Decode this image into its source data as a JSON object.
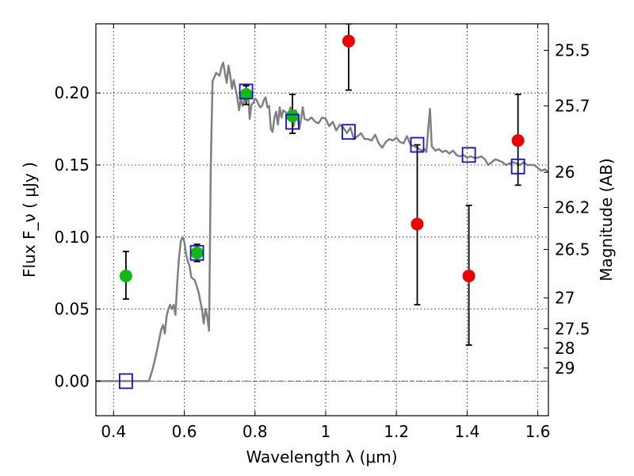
{
  "chart_data": {
    "type": "scatter",
    "xlabel": "Wavelength  λ (μm)",
    "ylabel": "Flux  F_ν  ( μJy )",
    "ylabel_right": "Magnitude (AB)",
    "xlim": [
      0.35,
      1.63
    ],
    "ylim": [
      -0.024,
      0.248
    ],
    "x_ticks": [
      0.4,
      0.6,
      0.8,
      1.0,
      1.2,
      1.4,
      1.6
    ],
    "x_tick_labels": [
      "0.4",
      "0.6",
      "0.8",
      "1",
      "1.2",
      "1.4",
      "1.6"
    ],
    "y_ticks": [
      0.0,
      0.05,
      0.1,
      0.15,
      0.2
    ],
    "y_tick_labels": [
      "0.00",
      "0.05",
      "0.10",
      "0.15",
      "0.20"
    ],
    "right_ticks": [
      {
        "label": "25.5",
        "flux": 0.2296
      },
      {
        "label": "25.7",
        "flux": 0.191
      },
      {
        "label": "26",
        "flux": 0.1449
      },
      {
        "label": "26.2",
        "flux": 0.1205
      },
      {
        "label": "26.5",
        "flux": 0.0914
      },
      {
        "label": "27",
        "flux": 0.0577
      },
      {
        "label": "27.5",
        "flux": 0.0364
      },
      {
        "label": "28",
        "flux": 0.0229
      },
      {
        "label": "29",
        "flux": 0.0091
      }
    ],
    "grid": true,
    "colors": {
      "model": "#808080",
      "detected": "#11bb11",
      "upper": "#ee0000",
      "model_points": "#1010d0",
      "errbar": "#000000"
    },
    "series": [
      {
        "kind": "model_spectrum",
        "x": [
          0.35,
          0.5,
          0.51,
          0.52,
          0.53,
          0.535,
          0.54,
          0.545,
          0.55,
          0.555,
          0.56,
          0.565,
          0.57,
          0.575,
          0.58,
          0.585,
          0.59,
          0.595,
          0.6,
          0.605,
          0.61,
          0.615,
          0.62,
          0.63,
          0.64,
          0.65,
          0.655,
          0.66,
          0.665,
          0.67,
          0.675,
          0.68,
          0.69,
          0.7,
          0.705,
          0.71,
          0.715,
          0.72,
          0.725,
          0.73,
          0.735,
          0.74,
          0.745,
          0.75,
          0.755,
          0.76,
          0.765,
          0.77,
          0.775,
          0.78,
          0.785,
          0.79,
          0.795,
          0.8,
          0.805,
          0.81,
          0.815,
          0.82,
          0.825,
          0.83,
          0.835,
          0.84,
          0.845,
          0.85,
          0.855,
          0.86,
          0.865,
          0.87,
          0.875,
          0.88,
          0.885,
          0.89,
          0.895,
          0.9,
          0.905,
          0.91,
          0.915,
          0.92,
          0.925,
          0.93,
          0.935,
          0.94,
          0.95,
          0.96,
          0.97,
          0.98,
          0.99,
          1.0,
          1.01,
          1.02,
          1.03,
          1.04,
          1.05,
          1.06,
          1.07,
          1.08,
          1.09,
          1.1,
          1.11,
          1.12,
          1.13,
          1.14,
          1.15,
          1.16,
          1.17,
          1.18,
          1.19,
          1.2,
          1.21,
          1.22,
          1.23,
          1.24,
          1.25,
          1.26,
          1.27,
          1.28,
          1.285,
          1.29,
          1.295,
          1.3,
          1.31,
          1.32,
          1.33,
          1.34,
          1.35,
          1.36,
          1.37,
          1.38,
          1.39,
          1.4,
          1.41,
          1.42,
          1.43,
          1.44,
          1.45,
          1.46,
          1.47,
          1.48,
          1.49,
          1.5,
          1.51,
          1.52,
          1.53,
          1.54,
          1.55,
          1.56,
          1.57,
          1.58,
          1.59,
          1.6,
          1.61,
          1.62,
          1.63
        ],
        "y": [
          0.0,
          0.0,
          0.008,
          0.018,
          0.03,
          0.036,
          0.039,
          0.033,
          0.045,
          0.05,
          0.053,
          0.05,
          0.053,
          0.046,
          0.068,
          0.085,
          0.097,
          0.1,
          0.097,
          0.088,
          0.083,
          0.08,
          0.072,
          0.07,
          0.062,
          0.05,
          0.04,
          0.05,
          0.045,
          0.035,
          0.15,
          0.208,
          0.214,
          0.212,
          0.218,
          0.221,
          0.214,
          0.207,
          0.219,
          0.212,
          0.203,
          0.209,
          0.203,
          0.197,
          0.188,
          0.196,
          0.191,
          0.195,
          0.203,
          0.202,
          0.182,
          0.192,
          0.193,
          0.196,
          0.195,
          0.192,
          0.19,
          0.191,
          0.195,
          0.197,
          0.19,
          0.191,
          0.175,
          0.173,
          0.183,
          0.187,
          0.178,
          0.19,
          0.183,
          0.188,
          0.187,
          0.186,
          0.185,
          0.19,
          0.181,
          0.177,
          0.188,
          0.185,
          0.175,
          0.181,
          0.19,
          0.182,
          0.181,
          0.183,
          0.18,
          0.179,
          0.183,
          0.182,
          0.177,
          0.18,
          0.174,
          0.178,
          0.176,
          0.172,
          0.176,
          0.168,
          0.17,
          0.172,
          0.168,
          0.168,
          0.167,
          0.171,
          0.165,
          0.162,
          0.166,
          0.168,
          0.167,
          0.169,
          0.166,
          0.165,
          0.17,
          0.164,
          0.163,
          0.162,
          0.16,
          0.161,
          0.159,
          0.175,
          0.189,
          0.163,
          0.16,
          0.161,
          0.159,
          0.16,
          0.158,
          0.16,
          0.157,
          0.156,
          0.157,
          0.155,
          0.156,
          0.155,
          0.155,
          0.156,
          0.154,
          0.15,
          0.152,
          0.154,
          0.153,
          0.152,
          0.15,
          0.151,
          0.152,
          0.151,
          0.15,
          0.152,
          0.15,
          0.15,
          0.15,
          0.148,
          0.146,
          0.147,
          0.145
        ]
      },
      {
        "kind": "model_points",
        "x": [
          0.435,
          0.636,
          0.775,
          0.906,
          1.065,
          1.259,
          1.405,
          1.544
        ],
        "y": [
          0.0,
          0.089,
          0.201,
          0.18,
          0.173,
          0.164,
          0.157,
          0.149
        ]
      },
      {
        "kind": "detected",
        "x": [
          0.435,
          0.636,
          0.775,
          0.906
        ],
        "y": [
          0.073,
          0.089,
          0.199,
          0.184
        ],
        "err_lo": [
          0.057,
          0.083,
          0.192,
          0.172
        ],
        "err_hi": [
          0.09,
          0.095,
          0.205,
          0.199
        ]
      },
      {
        "kind": "upper",
        "x": [
          1.065,
          1.259,
          1.405,
          1.544
        ],
        "y": [
          0.236,
          0.109,
          0.073,
          0.167
        ],
        "err_lo": [
          0.202,
          0.053,
          0.025,
          0.136
        ],
        "err_hi": [
          0.248,
          0.164,
          0.122,
          0.199
        ]
      }
    ]
  }
}
